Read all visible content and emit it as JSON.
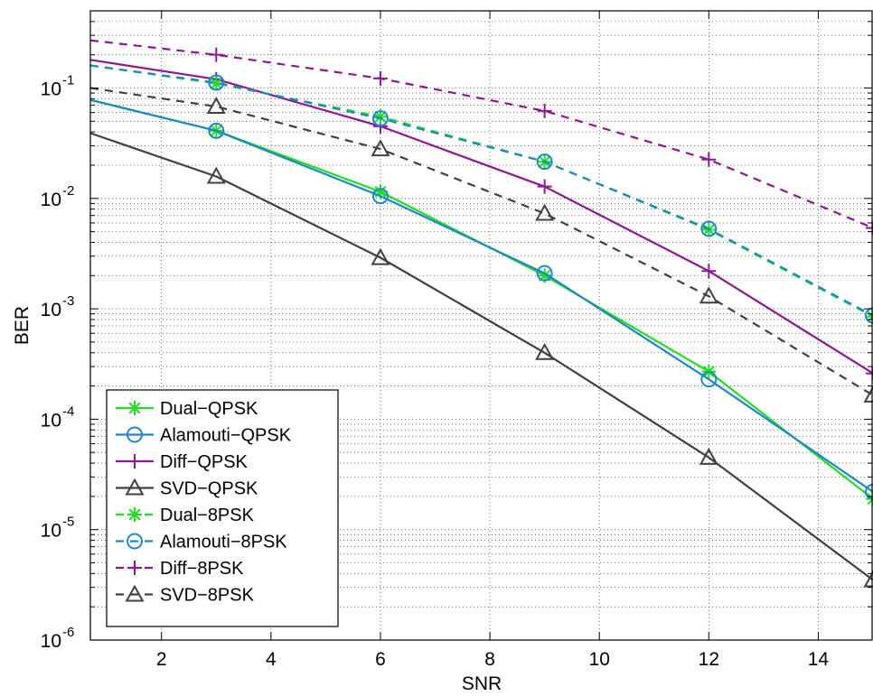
{
  "chart_data": {
    "type": "line",
    "title": "",
    "xlabel": "SNR",
    "ylabel": "BER",
    "xlim": [
      0.7,
      15
    ],
    "ylim": [
      1e-06,
      0.5
    ],
    "yscale": "log",
    "grid": "on (major solid, minor dotted)",
    "x_ticks": [
      2,
      4,
      6,
      8,
      10,
      12,
      14
    ],
    "x_tick_labels": [
      "2",
      "4",
      "6",
      "8",
      "10",
      "12",
      "14"
    ],
    "y_tick_labels": [
      {
        "base": "10",
        "exp": "-6"
      },
      {
        "base": "10",
        "exp": "-5"
      },
      {
        "base": "10",
        "exp": "-4"
      },
      {
        "base": "10",
        "exp": "-3"
      },
      {
        "base": "10",
        "exp": "-2"
      },
      {
        "base": "10",
        "exp": "-1"
      }
    ],
    "legend_position": "bottom-left",
    "series": [
      {
        "name": "Dual−QPSK",
        "color": "#22dd22",
        "dash": "solid",
        "marker": "asterisk",
        "x": [
          0.7,
          3,
          6,
          9,
          12,
          15
        ],
        "values": [
          0.078,
          0.041,
          0.0115,
          0.002,
          0.00027,
          1.9e-05
        ]
      },
      {
        "name": "Alamouti−QPSK",
        "color": "#1f87c8",
        "dash": "solid",
        "marker": "circle",
        "x": [
          0.7,
          3,
          6,
          9,
          12,
          15
        ],
        "values": [
          0.078,
          0.041,
          0.0105,
          0.0021,
          0.00023,
          2.2e-05
        ]
      },
      {
        "name": "Diff−QPSK",
        "color": "#8e1793",
        "dash": "solid",
        "marker": "plus",
        "x": [
          0.7,
          3,
          6,
          9,
          12,
          15
        ],
        "values": [
          0.18,
          0.12,
          0.045,
          0.0128,
          0.0022,
          0.00026
        ]
      },
      {
        "name": "SVD−QPSK",
        "color": "#404040",
        "dash": "solid",
        "marker": "triangle",
        "x": [
          0.7,
          3,
          6,
          9,
          12,
          15
        ],
        "values": [
          0.039,
          0.0158,
          0.0029,
          0.0004,
          4.5e-05,
          3.5e-06
        ]
      },
      {
        "name": "Dual−8PSK",
        "color": "#22dd22",
        "dash": "dashed",
        "marker": "asterisk",
        "x": [
          0.7,
          3,
          6,
          9,
          12,
          15
        ],
        "values": [
          0.16,
          0.11,
          0.055,
          0.0215,
          0.0052,
          0.00085
        ]
      },
      {
        "name": "Alamouti−8PSK",
        "color": "#1f87c8",
        "dash": "dashed",
        "marker": "circle",
        "x": [
          0.7,
          3,
          6,
          9,
          12,
          15
        ],
        "values": [
          0.16,
          0.112,
          0.053,
          0.0215,
          0.0053,
          0.00087
        ]
      },
      {
        "name": "Diff−8PSK",
        "color": "#8e1793",
        "dash": "dashed",
        "marker": "plus",
        "x": [
          0.7,
          3,
          6,
          9,
          12,
          15
        ],
        "values": [
          0.27,
          0.2,
          0.122,
          0.062,
          0.0225,
          0.0054
        ]
      },
      {
        "name": "SVD−8PSK",
        "color": "#404040",
        "dash": "dashed",
        "marker": "triangle",
        "x": [
          0.7,
          3,
          6,
          9,
          12,
          15
        ],
        "values": [
          0.1,
          0.068,
          0.028,
          0.0073,
          0.0013,
          0.000165
        ]
      }
    ]
  }
}
